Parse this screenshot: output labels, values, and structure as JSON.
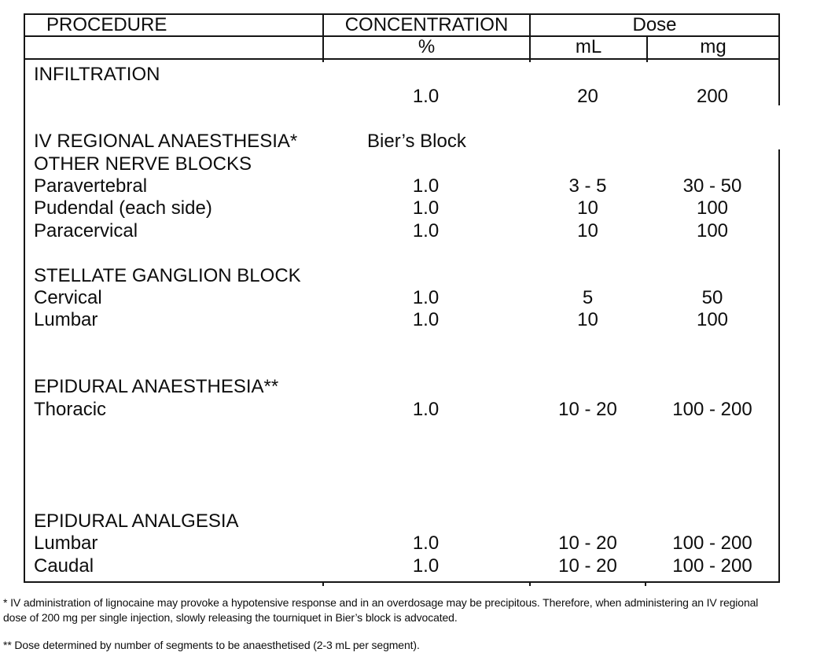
{
  "table": {
    "columns": {
      "procedure": "PROCEDURE",
      "concentration": "CONCENTRATION",
      "dose": "Dose",
      "percent": "%",
      "ml": "mL",
      "mg": "mg"
    },
    "rows": [
      {
        "procedure": "INFILTRATION",
        "concentration": "",
        "ml": "",
        "mg": ""
      },
      {
        "procedure": "",
        "concentration": "1.0",
        "ml": "20",
        "mg": "200"
      },
      {
        "procedure": "",
        "concentration": "",
        "ml": "",
        "mg": ""
      },
      {
        "procedure": "IV REGIONAL ANAESTHESIA*",
        "concentration": "Bier’s Block",
        "ml": "",
        "mg": "",
        "variant": "label"
      },
      {
        "procedure": "OTHER NERVE BLOCKS",
        "concentration": "",
        "ml": "",
        "mg": ""
      },
      {
        "procedure": "Paravertebral",
        "concentration": "1.0",
        "ml": "3 - 5",
        "mg": "30 - 50"
      },
      {
        "procedure": "Pudendal (each side)",
        "concentration": "1.0",
        "ml": "10",
        "mg": "100"
      },
      {
        "procedure": "Paracervical",
        "concentration": "1.0",
        "ml": "10",
        "mg": "100"
      },
      {
        "procedure": "",
        "concentration": "",
        "ml": "",
        "mg": ""
      },
      {
        "procedure": "STELLATE GANGLION BLOCK",
        "concentration": "",
        "ml": "",
        "mg": ""
      },
      {
        "procedure": "Cervical",
        "concentration": "1.0",
        "ml": "5",
        "mg": "50"
      },
      {
        "procedure": "Lumbar",
        "concentration": "1.0",
        "ml": "10",
        "mg": "100"
      },
      {
        "procedure": "",
        "concentration": "",
        "ml": "",
        "mg": ""
      },
      {
        "procedure": "",
        "concentration": "",
        "ml": "",
        "mg": ""
      },
      {
        "procedure": "EPIDURAL ANAESTHESIA**",
        "concentration": "",
        "ml": "",
        "mg": ""
      },
      {
        "procedure": "Thoracic",
        "concentration": "1.0",
        "ml": "10 - 20",
        "mg": "100 - 200"
      },
      {
        "procedure": "",
        "concentration": "",
        "ml": "",
        "mg": ""
      },
      {
        "procedure": "",
        "concentration": "",
        "ml": "",
        "mg": ""
      },
      {
        "procedure": "",
        "concentration": "",
        "ml": "",
        "mg": ""
      },
      {
        "procedure": "",
        "concentration": "",
        "ml": "",
        "mg": ""
      },
      {
        "procedure": "EPIDURAL ANALGESIA",
        "concentration": "",
        "ml": "",
        "mg": ""
      },
      {
        "procedure": "Lumbar",
        "concentration": "1.0",
        "ml": "10 - 20",
        "mg": "100 - 200"
      },
      {
        "procedure": "Caudal",
        "concentration": "1.0",
        "ml": "10 - 20",
        "mg": "100 - 200"
      }
    ]
  },
  "footnotes": {
    "first": {
      "line1": "* IV administration of lignocaine may provoke a hypotensive response and in an overdosage may be precipitous. Therefore, when administering an IV regional",
      "line2": "dose of 200 mg per single injection, slowly releasing the tourniquet in Bier’s block is advocated."
    },
    "second": {
      "line1": "** Dose determined by number of segments to be anaesthetised (2-3 mL per segment)."
    }
  },
  "colors": {
    "text": "#0d0d0d",
    "border": "#151515",
    "background": "#ffffff"
  }
}
